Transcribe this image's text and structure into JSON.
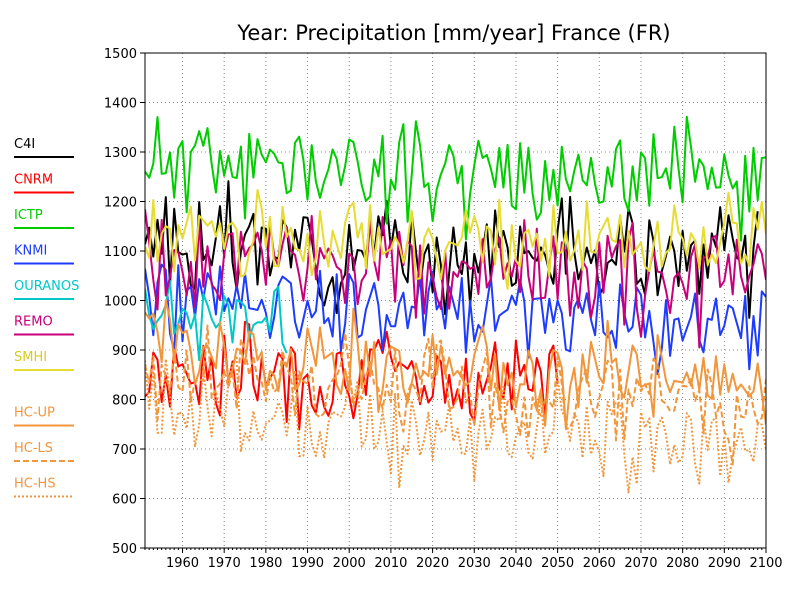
{
  "chart_data": {
    "type": "line",
    "title": "Year: Precipitation [mm/year] France (FR)",
    "xlabel": "",
    "ylabel": "",
    "xlim": [
      1951,
      2100
    ],
    "ylim": [
      500,
      1500
    ],
    "x_ticks": [
      1960,
      1970,
      1980,
      1990,
      2000,
      2010,
      2020,
      2030,
      2040,
      2050,
      2060,
      2070,
      2080,
      2090,
      2100
    ],
    "y_ticks": [
      500,
      600,
      700,
      800,
      900,
      1000,
      1100,
      1200,
      1300,
      1400,
      1500
    ],
    "grid": true,
    "legend_position": "left",
    "series": [
      {
        "name": "C4I",
        "color": "#000000",
        "dash": "solid",
        "start": 1951,
        "end": 2098,
        "mean": 1110,
        "amplitude": 150,
        "trend": -20,
        "seed": 3
      },
      {
        "name": "CNRM",
        "color": "#ff0000",
        "dash": "solid",
        "start": 1951,
        "end": 2050,
        "mean": 860,
        "amplitude": 140,
        "trend": -20,
        "seed": 7
      },
      {
        "name": "ICTP",
        "color": "#00cc00",
        "dash": "solid",
        "start": 1951,
        "end": 2100,
        "mean": 1280,
        "amplitude": 150,
        "trend": -40,
        "seed": 11
      },
      {
        "name": "KNMI",
        "color": "#1e3cff",
        "dash": "solid",
        "start": 1951,
        "end": 2100,
        "mean": 1010,
        "amplitude": 140,
        "trend": -60,
        "seed": 19
      },
      {
        "name": "OURANOS",
        "color": "#00c8c8",
        "dash": "solid",
        "start": 1951,
        "end": 1985,
        "mean": 960,
        "amplitude": 100,
        "trend": 0,
        "seed": 23
      },
      {
        "name": "REMO",
        "color": "#c8007a",
        "dash": "solid",
        "start": 1951,
        "end": 2100,
        "mean": 1080,
        "amplitude": 150,
        "trend": -40,
        "seed": 29
      },
      {
        "name": "SMHI",
        "color": "#e6dc32",
        "dash": "solid",
        "start": 1951,
        "end": 2100,
        "mean": 1130,
        "amplitude": 120,
        "trend": -20,
        "seed": 31
      },
      {
        "name": "HC-UP",
        "color": "#f0963c",
        "dash": "solid",
        "start": 1951,
        "end": 2100,
        "mean": 900,
        "amplitude": 140,
        "trend": -70,
        "seed": 37
      },
      {
        "name": "HC-LS",
        "color": "#f0963c",
        "dash": "dashed",
        "start": 1951,
        "end": 2100,
        "mean": 850,
        "amplitude": 150,
        "trend": -80,
        "seed": 41
      },
      {
        "name": "HC-HS",
        "color": "#f0963c",
        "dash": "dotted",
        "start": 1951,
        "end": 2100,
        "mean": 790,
        "amplitude": 150,
        "trend": -90,
        "seed": 43
      }
    ]
  }
}
